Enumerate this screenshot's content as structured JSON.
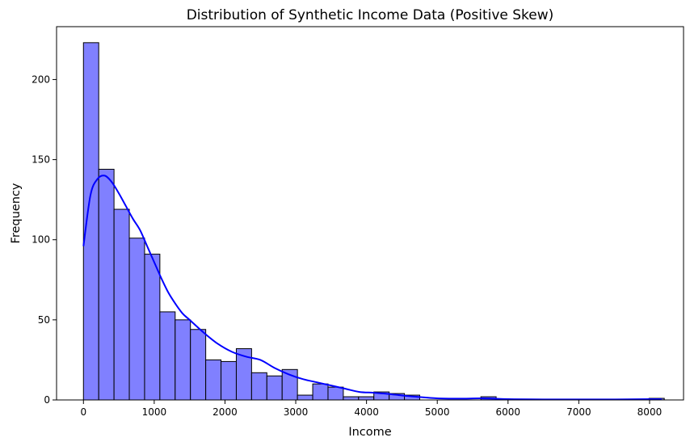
{
  "chart_data": {
    "type": "bar",
    "title": "Distribution of Synthetic Income Data (Positive Skew)",
    "xlabel": "Income",
    "ylabel": "Frequency",
    "xlim": [
      -380,
      8480
    ],
    "ylim": [
      0,
      233
    ],
    "xticks": [
      0,
      1000,
      2000,
      3000,
      4000,
      5000,
      6000,
      7000,
      8000
    ],
    "yticks": [
      0,
      50,
      100,
      150,
      200
    ],
    "bin_start": 0,
    "bin_width": 216,
    "counts": [
      223,
      144,
      119,
      101,
      91,
      55,
      50,
      44,
      25,
      24,
      32,
      17,
      15,
      19,
      3,
      10,
      8,
      2,
      2,
      5,
      4,
      3,
      0,
      0,
      0,
      0,
      2,
      0,
      0,
      0,
      0,
      0,
      0,
      0,
      0,
      0,
      0,
      1
    ],
    "bar_color": "#8080ff",
    "edge_color": "#000000",
    "kde": {
      "color": "#0000ff",
      "x": [
        0,
        100,
        200,
        300,
        400,
        500,
        600,
        700,
        800,
        900,
        1000,
        1100,
        1200,
        1300,
        1400,
        1500,
        1700,
        1900,
        2100,
        2300,
        2500,
        2700,
        2900,
        3100,
        3300,
        3500,
        3700,
        3900,
        4100,
        4300,
        4500,
        4700,
        5000,
        5300,
        5600,
        5800,
        6000,
        6500,
        7000,
        7500,
        8000,
        8170
      ],
      "y": [
        96,
        128,
        138,
        140,
        136,
        129,
        121,
        113,
        106,
        96,
        86,
        76,
        67,
        60,
        54,
        50,
        42,
        35,
        30,
        27,
        25,
        20,
        16,
        13,
        11,
        9,
        7,
        5,
        4.5,
        3.8,
        2.8,
        2,
        1,
        0.8,
        1,
        0.8,
        0.5,
        0.3,
        0.3,
        0.3,
        0.5,
        0.5
      ]
    }
  }
}
